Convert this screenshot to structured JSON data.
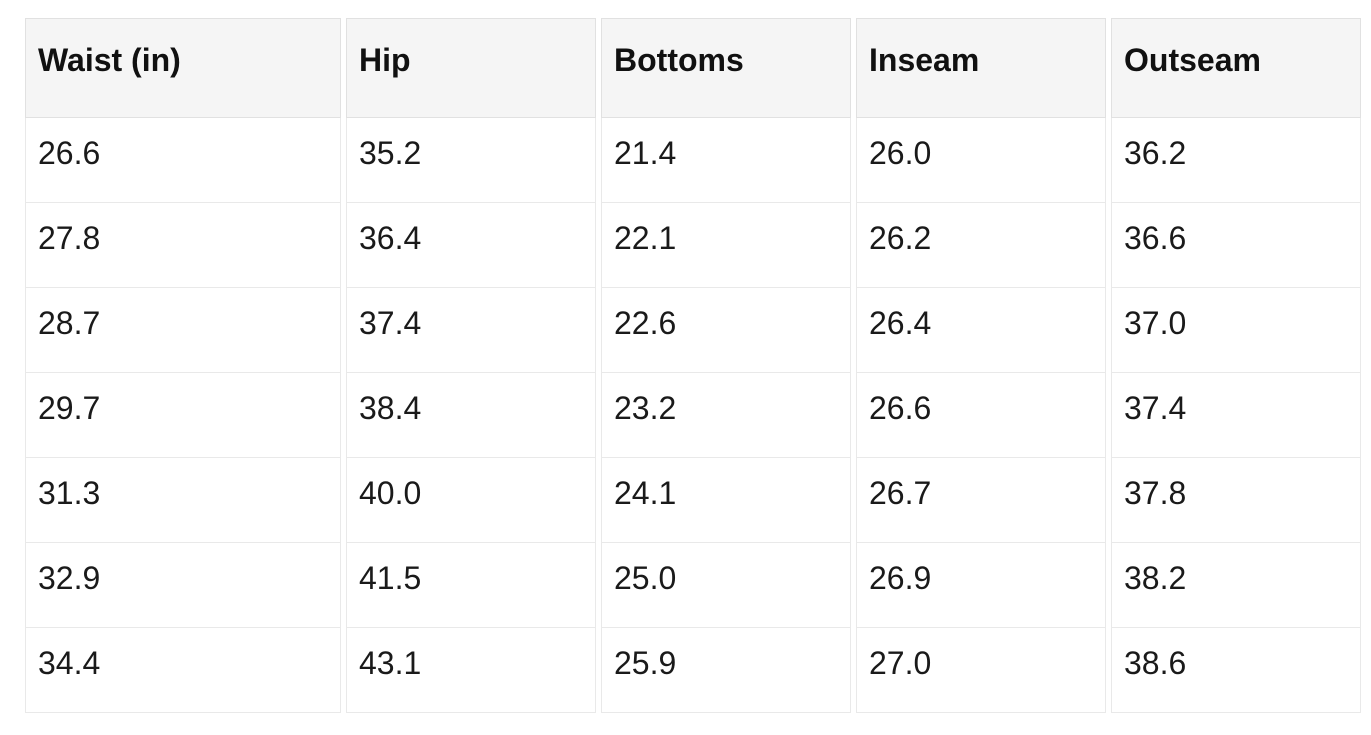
{
  "chart_data": {
    "type": "table",
    "title": "",
    "columns": [
      "Waist (in)",
      "Hip",
      "Bottoms",
      "Inseam",
      "Outseam"
    ],
    "rows": [
      [
        "26.6",
        "35.2",
        "21.4",
        "26.0",
        "36.2"
      ],
      [
        "27.8",
        "36.4",
        "22.1",
        "26.2",
        "36.6"
      ],
      [
        "28.7",
        "37.4",
        "22.6",
        "26.4",
        "37.0"
      ],
      [
        "29.7",
        "38.4",
        "23.2",
        "26.6",
        "37.4"
      ],
      [
        "31.3",
        "40.0",
        "24.1",
        "26.7",
        "37.8"
      ],
      [
        "32.9",
        "41.5",
        "25.0",
        "26.9",
        "38.2"
      ],
      [
        "34.4",
        "43.1",
        "25.9",
        "27.0",
        "38.6"
      ]
    ]
  },
  "colors": {
    "page_background": "#ffffff",
    "header_background": "#f5f5f5",
    "header_border": "#e1e1e1",
    "body_border": "#e9e9e9",
    "header_text": "#111111",
    "body_text": "#1a1a1a"
  }
}
